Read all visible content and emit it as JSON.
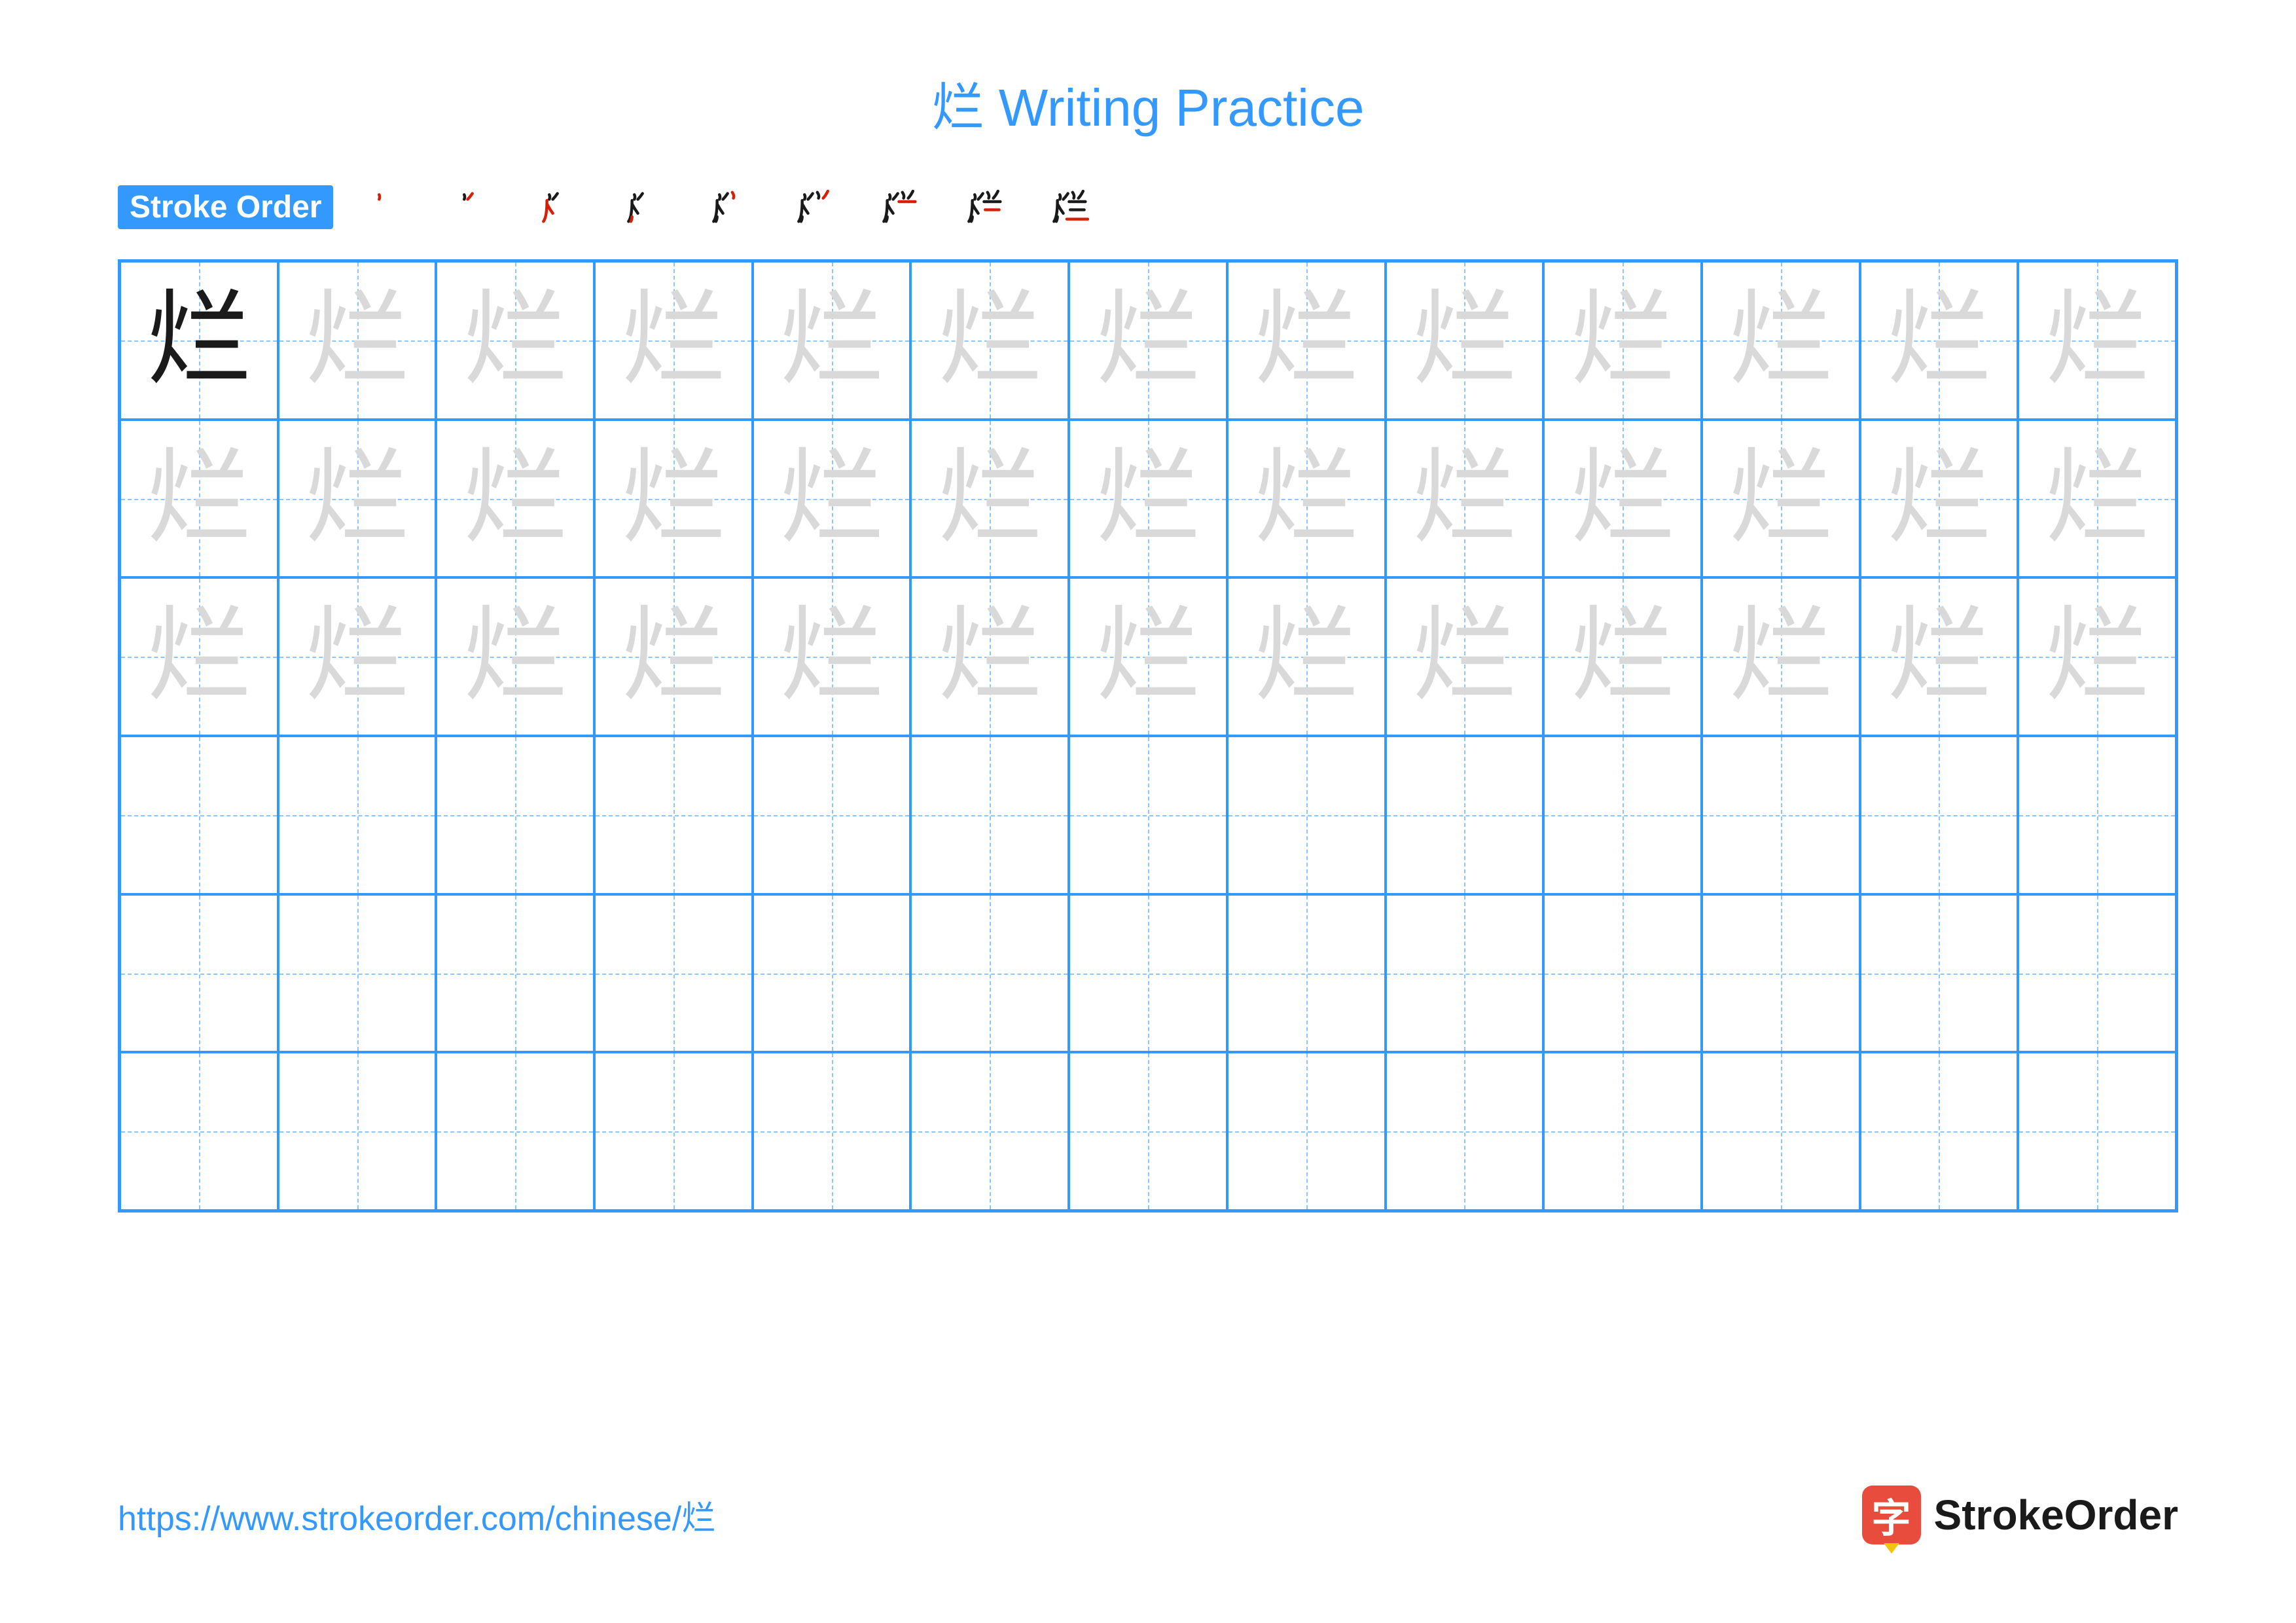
{
  "character": "烂",
  "title": "烂 Writing Practice",
  "stroke_label": "Stroke Order",
  "stroke_count": 9,
  "grid": {
    "rows": 6,
    "cols": 13,
    "trace_rows": 3,
    "empty_rows": 3
  },
  "footer_url": "https://www.strokeorder.com/chinese/烂",
  "brand_icon_text": "字",
  "brand_text": "StrokeOrder",
  "colors": {
    "title": "#3399ff",
    "label_bg": "#3399ff",
    "label_text": "#ffffff",
    "grid_border": "#3399ff",
    "guide_line": "#8dc6ff",
    "solid_char": "#1a1a1a",
    "trace_char": "#d9d9d9",
    "stroke_current": "#d81e06",
    "stroke_done": "#1a1a1a",
    "url": "#3399ff",
    "brand_icon_bg": "#e74c3c",
    "brand_icon_tip": "#f1c40f",
    "brand_text_color": "#1a1a1a",
    "background": "#ffffff"
  },
  "strokes": [
    "M34 14 Q36 18 34 22",
    "M48 12 Q44 18 40 22",
    "M30 24 Q30 52 24 60 M30 30 Q34 38 40 46",
    "M28 60 Q30 56 30 52",
    "M56 10 Q60 16 58 20",
    "M74 8 Q70 16 66 20",
    "M50 26 L78 26",
    "M52 40 L76 40",
    "M46 56 L82 56"
  ]
}
